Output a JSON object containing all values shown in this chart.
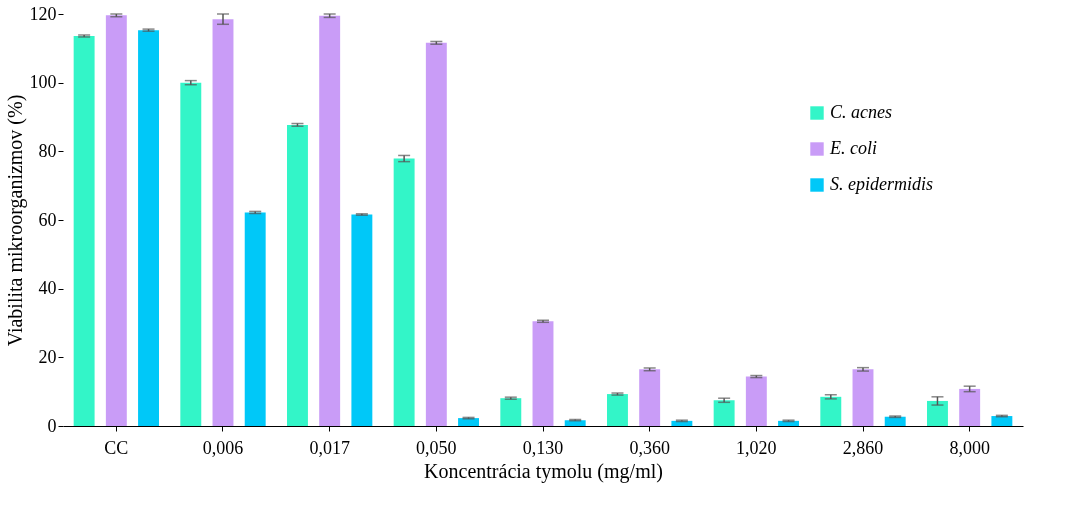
{
  "chart_data": {
    "type": "bar",
    "xlabel": "Koncentrácia tymolu (mg/ml)",
    "ylabel": "Viabilita mikroorganizmov (%)",
    "categories": [
      "CC",
      "0,006",
      "0,017",
      "0,050",
      "0,130",
      "0,360",
      "1,020",
      "2,860",
      "8,000"
    ],
    "series": [
      {
        "name": "C. acnes",
        "color": "#33f5c8",
        "values": [
          113.6,
          100,
          87.7,
          77.9,
          8.1,
          9.3,
          7.5,
          8.5,
          7.3
        ],
        "errors": [
          0.3,
          0.6,
          0.4,
          0.9,
          0.3,
          0.3,
          0.6,
          0.6,
          1.2
        ]
      },
      {
        "name": "E. coli",
        "color": "#c99cf7",
        "values": [
          119.6,
          118.5,
          119.5,
          111.6,
          30.5,
          16.5,
          14.4,
          16.5,
          10.8
        ],
        "errors": [
          0.4,
          1.5,
          0.5,
          0.4,
          0.3,
          0.4,
          0.3,
          0.5,
          0.8
        ]
      },
      {
        "name": "S. epidermidis",
        "color": "#00c8f8",
        "values": [
          115.3,
          62.2,
          61.6,
          2.3,
          1.7,
          1.5,
          1.5,
          2.7,
          2.9
        ],
        "errors": [
          0.3,
          0.3,
          0.2,
          0.2,
          0.2,
          0.2,
          0.2,
          0.2,
          0.2
        ]
      }
    ],
    "ylim": [
      0,
      120
    ],
    "yticks": [
      0,
      20,
      40,
      60,
      80,
      100,
      120
    ],
    "legend": "top right",
    "grid": false
  }
}
